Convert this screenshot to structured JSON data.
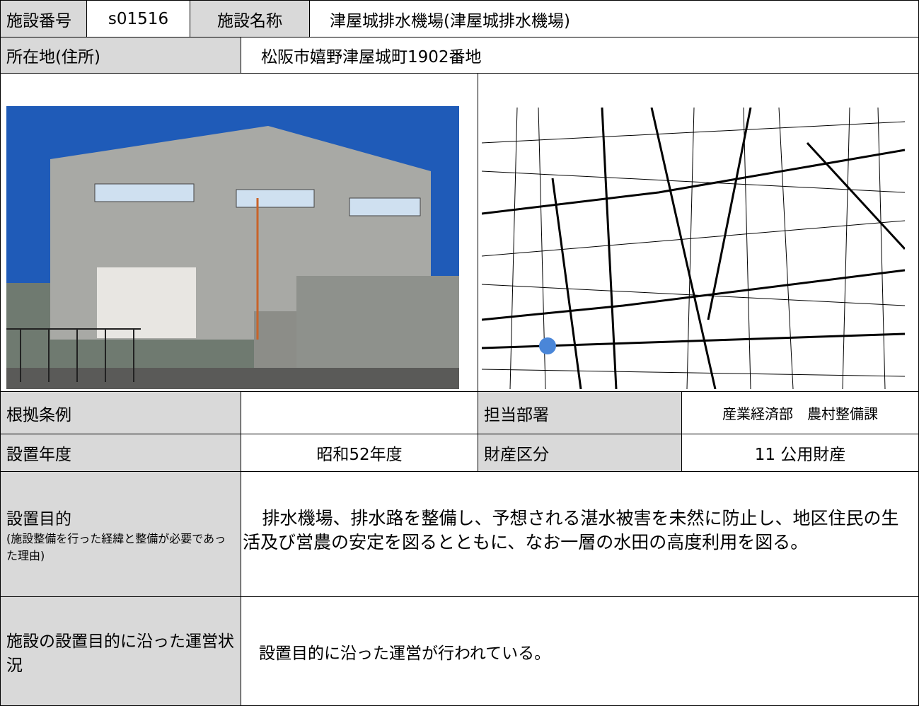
{
  "header": {
    "number_label": "施設番号",
    "number": "s01516",
    "name_label": "施設名称",
    "name": "津屋城排水機場(津屋城排水機場)"
  },
  "location": {
    "label": "所在地(住所)",
    "value": "松阪市嬉野津屋城町1902番地"
  },
  "ordinance": {
    "label": "根拠条例"
  },
  "department": {
    "label": "担当部署",
    "value": "産業経済部　農村整備課"
  },
  "year": {
    "label": "設置年度",
    "value": "昭和52年度"
  },
  "property": {
    "label": "財産区分",
    "value": "11 公用財産"
  },
  "purpose": {
    "label": "設置目的",
    "note": "(施設整備を行った経緯と整備が必要であった理由)",
    "value": "排水機場、排水路を整備し、予想される湛水被害を未然に防止し、地区住民の生活及び営農の安定を図るとともに、なお一層の水田の高度利用を図る。"
  },
  "status": {
    "label": "施設の設置目的に沿った運営状況",
    "value": "設置目的に沿った運営が行われている。"
  }
}
